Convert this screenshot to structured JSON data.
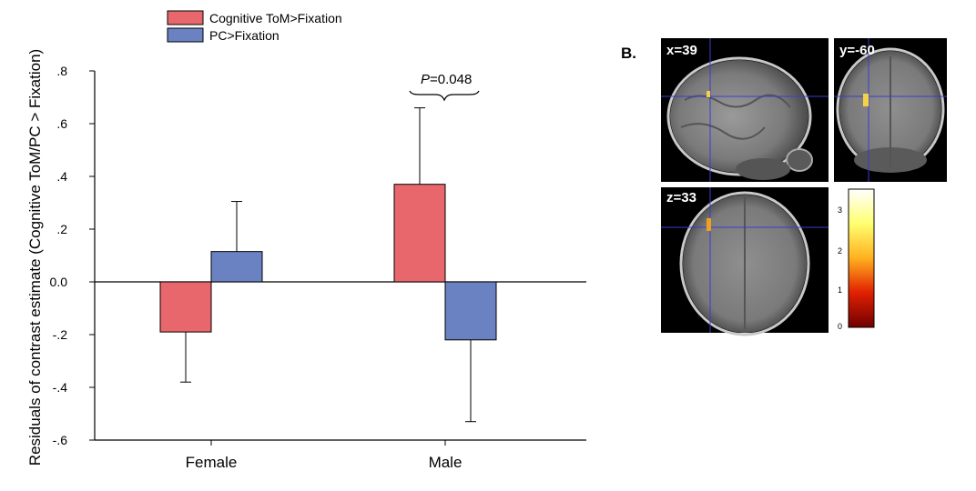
{
  "chart_data": {
    "type": "bar",
    "ylabel": "Residuals of contrast estimate (Cognitive ToM/PC > Fixation)",
    "ylim": [
      -0.6,
      0.8
    ],
    "yticks": [
      ".8",
      ".6",
      ".4",
      ".2",
      "0.0",
      "-.2",
      "-.4",
      "-.6"
    ],
    "categories": [
      "Female",
      "Male"
    ],
    "series": [
      {
        "name": "Cognitive ToM>Fixation",
        "color": "#e8676c",
        "values": [
          -0.19,
          0.37
        ],
        "errors": [
          0.19,
          0.29
        ]
      },
      {
        "name": "PC>Fixation",
        "color": "#6b82c2",
        "values": [
          0.115,
          -0.22
        ],
        "errors": [
          0.19,
          0.31
        ]
      }
    ],
    "annotation": {
      "p_letter": "P",
      "p_value": "=0.048"
    },
    "legend_position": "top"
  },
  "panel_b": {
    "label": "B.",
    "views": [
      {
        "label": "x=39"
      },
      {
        "label": "y=-60"
      },
      {
        "label": "z=33"
      }
    ],
    "colorbar_ticks": [
      "3",
      "2",
      "1",
      "0"
    ]
  }
}
